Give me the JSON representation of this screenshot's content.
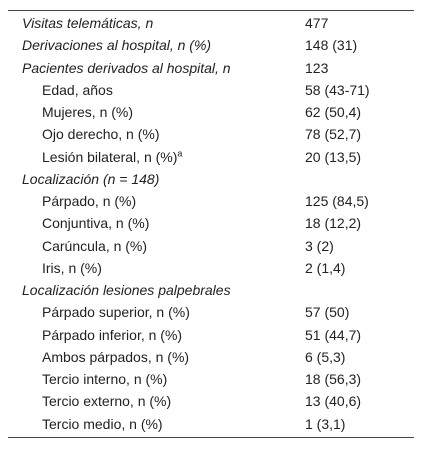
{
  "table": {
    "groups": [
      {
        "label": "Visitas telemáticas, n",
        "value": "477"
      },
      {
        "label": "Derivaciones al hospital, n (%)",
        "value": "148 (31)"
      },
      {
        "label": "Pacientes derivados al hospital, n",
        "value": "123",
        "items": [
          {
            "label": "Edad, años",
            "value": "58 (43-71)"
          },
          {
            "label": "Mujeres, n (%)",
            "value": "62 (50,4)"
          },
          {
            "label": "Ojo derecho, n (%)",
            "value": "78 (52,7)"
          },
          {
            "label": "Lesión bilateral, n (%)",
            "sup": "a",
            "value": "20 (13,5)"
          }
        ]
      },
      {
        "label": "Localización (n = 148)",
        "items": [
          {
            "label": "Párpado, n (%)",
            "value": "125 (84,5)"
          },
          {
            "label": "Conjuntiva, n (%)",
            "value": "18 (12,2)"
          },
          {
            "label": "Carúncula, n (%)",
            "value": "3 (2)"
          },
          {
            "label": "Iris, n (%)",
            "value": "2 (1,4)"
          }
        ]
      },
      {
        "label": "Localización lesiones palpebrales",
        "items": [
          {
            "label": "Párpado superior, n (%)",
            "value": "57 (50)"
          },
          {
            "label": "Párpado inferior, n (%)",
            "value": "51 (44,7)"
          },
          {
            "label": "Ambos párpados, n (%)",
            "value": "6 (5,3)"
          },
          {
            "label": "Tercio interno, n (%)",
            "value": "18 (56,3)"
          },
          {
            "label": "Tercio externo, n (%)",
            "value": "13 (40,6)"
          },
          {
            "label": "Tercio medio, n (%)",
            "value": "1 (3,1)"
          }
        ]
      }
    ]
  }
}
